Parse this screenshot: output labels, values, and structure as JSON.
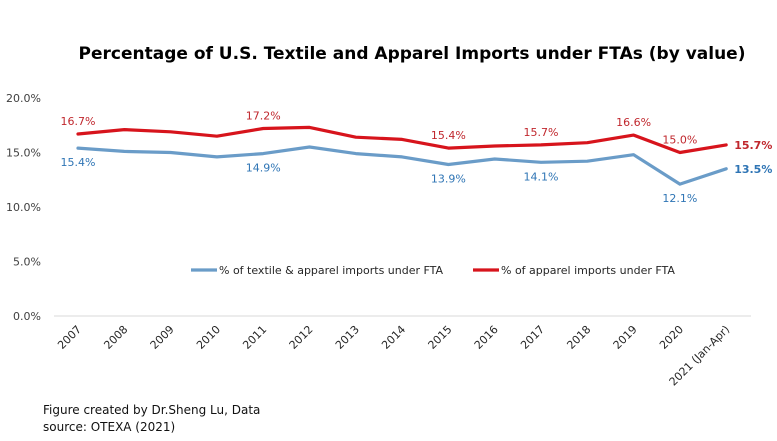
{
  "chart_data": {
    "type": "line",
    "title": "Percentage of U.S. Textile and Apparel Imports under FTAs (by value)",
    "xlabel": "",
    "ylabel": "",
    "categories": [
      "2007",
      "2008",
      "2009",
      "2010",
      "2011",
      "2012",
      "2013",
      "2014",
      "2015",
      "2016",
      "2017",
      "2018",
      "2019",
      "2020",
      "2021 (Jan-Apr)"
    ],
    "ylim": [
      0,
      20
    ],
    "yticks": [
      0,
      5,
      10,
      15,
      20
    ],
    "ytick_labels": [
      "0.0%",
      "5.0%",
      "10.0%",
      "15.0%",
      "20.0%"
    ],
    "grid": false,
    "legend_position": "center",
    "series": [
      {
        "name": "% of textile & apparel imports under FTA",
        "color": "#6a9cc8",
        "label_color": "#2f75b5",
        "values": [
          15.4,
          15.1,
          15.0,
          14.6,
          14.9,
          15.5,
          14.9,
          14.6,
          13.9,
          14.4,
          14.1,
          14.2,
          14.8,
          12.1,
          13.5
        ],
        "data_labels": [
          {
            "index": 0,
            "text": "15.4%",
            "bold": false
          },
          {
            "index": 4,
            "text": "14.9%",
            "bold": false
          },
          {
            "index": 8,
            "text": "13.9%",
            "bold": false
          },
          {
            "index": 10,
            "text": "14.1%",
            "bold": false
          },
          {
            "index": 13,
            "text": "12.1%",
            "bold": false
          },
          {
            "index": 14,
            "text": "13.5%",
            "bold": true
          }
        ]
      },
      {
        "name": "% of apparel imports under FTA",
        "color": "#d7141c",
        "label_color": "#c0272d",
        "values": [
          16.7,
          17.1,
          16.9,
          16.5,
          17.2,
          17.3,
          16.4,
          16.2,
          15.4,
          15.6,
          15.7,
          15.9,
          16.6,
          15.0,
          15.7
        ],
        "data_labels": [
          {
            "index": 0,
            "text": "16.7%",
            "bold": false
          },
          {
            "index": 4,
            "text": "17.2%",
            "bold": false
          },
          {
            "index": 8,
            "text": "15.4%",
            "bold": false
          },
          {
            "index": 10,
            "text": "15.7%",
            "bold": false
          },
          {
            "index": 12,
            "text": "16.6%",
            "bold": false
          },
          {
            "index": 13,
            "text": "15.0%",
            "bold": false
          },
          {
            "index": 14,
            "text": "15.7%",
            "bold": true
          }
        ]
      }
    ],
    "annotation": "Figure created by Dr.Sheng Lu, Data source: OTEXA (2021)"
  },
  "caption": {
    "line1": "Figure created by Dr.Sheng Lu, Data",
    "line2": "source: OTEXA (2021)"
  }
}
